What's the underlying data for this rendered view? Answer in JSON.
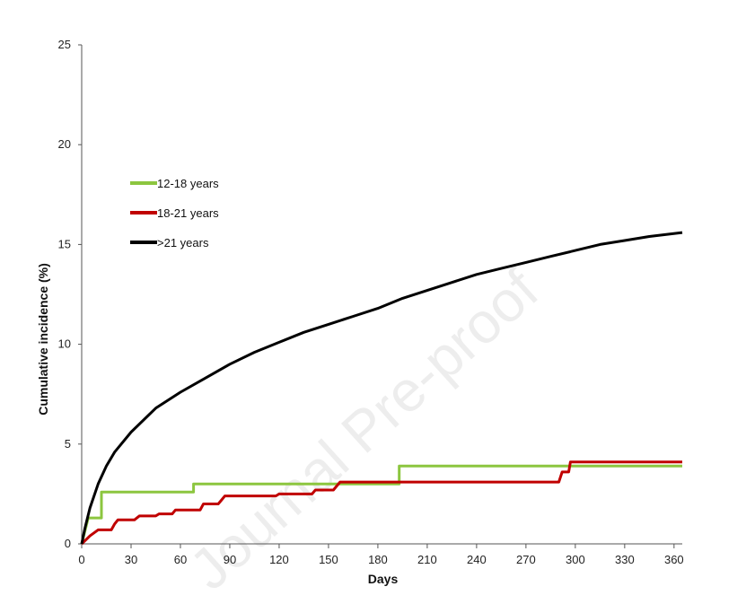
{
  "chart_data": {
    "type": "line",
    "title": "",
    "xlabel": "Days",
    "ylabel": "Cumulative incidence (%)",
    "xlim": [
      0,
      365
    ],
    "ylim": [
      0,
      25
    ],
    "x_ticks": [
      0,
      30,
      60,
      90,
      120,
      150,
      180,
      210,
      240,
      270,
      300,
      330,
      360
    ],
    "y_ticks": [
      0,
      5,
      10,
      15,
      20,
      25
    ],
    "grid": false,
    "legend_position": "upper-left",
    "watermark": "Journal Pre-proof",
    "series": [
      {
        "name": "12-18 years",
        "color": "#8cc63f",
        "step": true,
        "points": [
          [
            0,
            0
          ],
          [
            4,
            1.3
          ],
          [
            12,
            1.3
          ],
          [
            12,
            2.6
          ],
          [
            68,
            2.6
          ],
          [
            68,
            3.0
          ],
          [
            193,
            3.0
          ],
          [
            193,
            3.9
          ],
          [
            365,
            3.9
          ]
        ]
      },
      {
        "name": "18-21 years",
        "color": "#c00000",
        "step": true,
        "points": [
          [
            0,
            0
          ],
          [
            5,
            0.4
          ],
          [
            10,
            0.7
          ],
          [
            18,
            0.7
          ],
          [
            20,
            1.0
          ],
          [
            22,
            1.2
          ],
          [
            32,
            1.2
          ],
          [
            35,
            1.4
          ],
          [
            45,
            1.4
          ],
          [
            47,
            1.5
          ],
          [
            55,
            1.5
          ],
          [
            57,
            1.7
          ],
          [
            72,
            1.7
          ],
          [
            74,
            2.0
          ],
          [
            83,
            2.0
          ],
          [
            85,
            2.2
          ],
          [
            87,
            2.4
          ],
          [
            118,
            2.4
          ],
          [
            120,
            2.5
          ],
          [
            140,
            2.5
          ],
          [
            142,
            2.7
          ],
          [
            153,
            2.7
          ],
          [
            155,
            2.9
          ],
          [
            157,
            3.1
          ],
          [
            290,
            3.1
          ],
          [
            292,
            3.6
          ],
          [
            296,
            3.6
          ],
          [
            297,
            4.1
          ],
          [
            365,
            4.1
          ]
        ]
      },
      {
        "name": ">21 years",
        "color": "#000000",
        "step": false,
        "points": [
          [
            0,
            0
          ],
          [
            2,
            0.8
          ],
          [
            5,
            1.8
          ],
          [
            10,
            3.0
          ],
          [
            15,
            3.9
          ],
          [
            20,
            4.6
          ],
          [
            30,
            5.6
          ],
          [
            45,
            6.8
          ],
          [
            60,
            7.6
          ],
          [
            75,
            8.3
          ],
          [
            90,
            9.0
          ],
          [
            105,
            9.6
          ],
          [
            120,
            10.1
          ],
          [
            135,
            10.6
          ],
          [
            150,
            11.0
          ],
          [
            165,
            11.4
          ],
          [
            180,
            11.8
          ],
          [
            195,
            12.3
          ],
          [
            210,
            12.7
          ],
          [
            225,
            13.1
          ],
          [
            240,
            13.5
          ],
          [
            255,
            13.8
          ],
          [
            270,
            14.1
          ],
          [
            285,
            14.4
          ],
          [
            300,
            14.7
          ],
          [
            315,
            15.0
          ],
          [
            330,
            15.2
          ],
          [
            345,
            15.4
          ],
          [
            365,
            15.6
          ]
        ]
      }
    ]
  }
}
